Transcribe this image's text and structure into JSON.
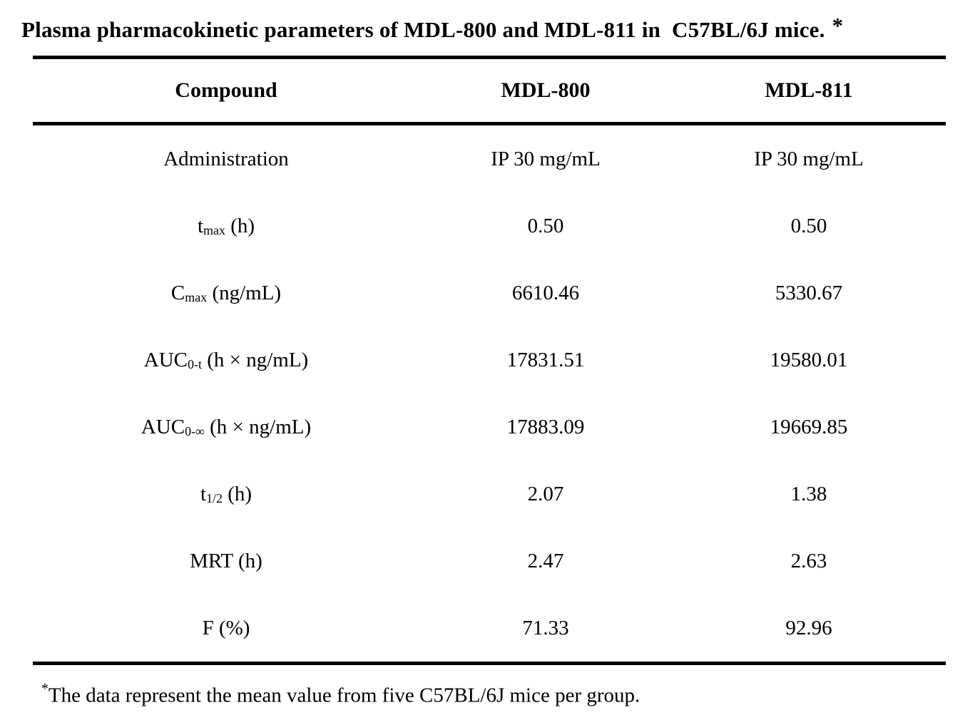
{
  "title": {
    "text": "Plasma pharmacokinetic parameters of MDL-800 and MDL-811 in  C57BL/6J mice.",
    "asterisk": "*"
  },
  "table": {
    "columns": [
      "Compound",
      "MDL-800",
      "MDL-811"
    ],
    "rows": [
      {
        "label": {
          "base": "Administration",
          "sub": "",
          "rest": ""
        },
        "values": [
          "IP 30 mg/mL",
          "IP 30 mg/mL"
        ]
      },
      {
        "label": {
          "base": "t",
          "sub": "max",
          "rest": " (h)"
        },
        "values": [
          "0.50",
          "0.50"
        ]
      },
      {
        "label": {
          "base": "C",
          "sub": "max",
          "rest": " (ng/mL)"
        },
        "values": [
          "6610.46",
          "5330.67"
        ]
      },
      {
        "label": {
          "base": "AUC",
          "sub": "0-t",
          "rest": " (h × ng/mL)"
        },
        "values": [
          "17831.51",
          "19580.01"
        ]
      },
      {
        "label": {
          "base": "AUC",
          "sub": "0-∞",
          "rest": " (h × ng/mL)"
        },
        "values": [
          "17883.09",
          "19669.85"
        ]
      },
      {
        "label": {
          "base": "t",
          "sub": "1/2",
          "rest": " (h)"
        },
        "values": [
          "2.07",
          "1.38"
        ]
      },
      {
        "label": {
          "base": "MRT",
          "sub": "",
          "rest": " (h)"
        },
        "values": [
          "2.47",
          "2.63"
        ]
      },
      {
        "label": {
          "base": "F",
          "sub": "",
          "rest": " (%)"
        },
        "values": [
          "71.33",
          "92.96"
        ]
      }
    ]
  },
  "footnote": {
    "marker": "*",
    "text": "The data represent the mean value from five C57BL/6J mice per group."
  },
  "chart_data": {
    "type": "table",
    "title": "Plasma pharmacokinetic parameters of MDL-800 and MDL-811 in C57BL/6J mice. *",
    "columns": [
      "Compound",
      "MDL-800",
      "MDL-811"
    ],
    "rows": [
      [
        "Administration",
        "IP 30 mg/mL",
        "IP 30 mg/mL"
      ],
      [
        "tmax (h)",
        "0.50",
        "0.50"
      ],
      [
        "Cmax (ng/mL)",
        "6610.46",
        "5330.67"
      ],
      [
        "AUC0-t (h × ng/mL)",
        "17831.51",
        "19580.01"
      ],
      [
        "AUC0-∞ (h × ng/mL)",
        "17883.09",
        "19669.85"
      ],
      [
        "t1/2 (h)",
        "2.07",
        "1.38"
      ],
      [
        "MRT (h)",
        "2.47",
        "2.63"
      ],
      [
        "F (%)",
        "71.33",
        "92.96"
      ]
    ],
    "footnote": "*The data represent the mean value from five C57BL/6J mice per group."
  }
}
